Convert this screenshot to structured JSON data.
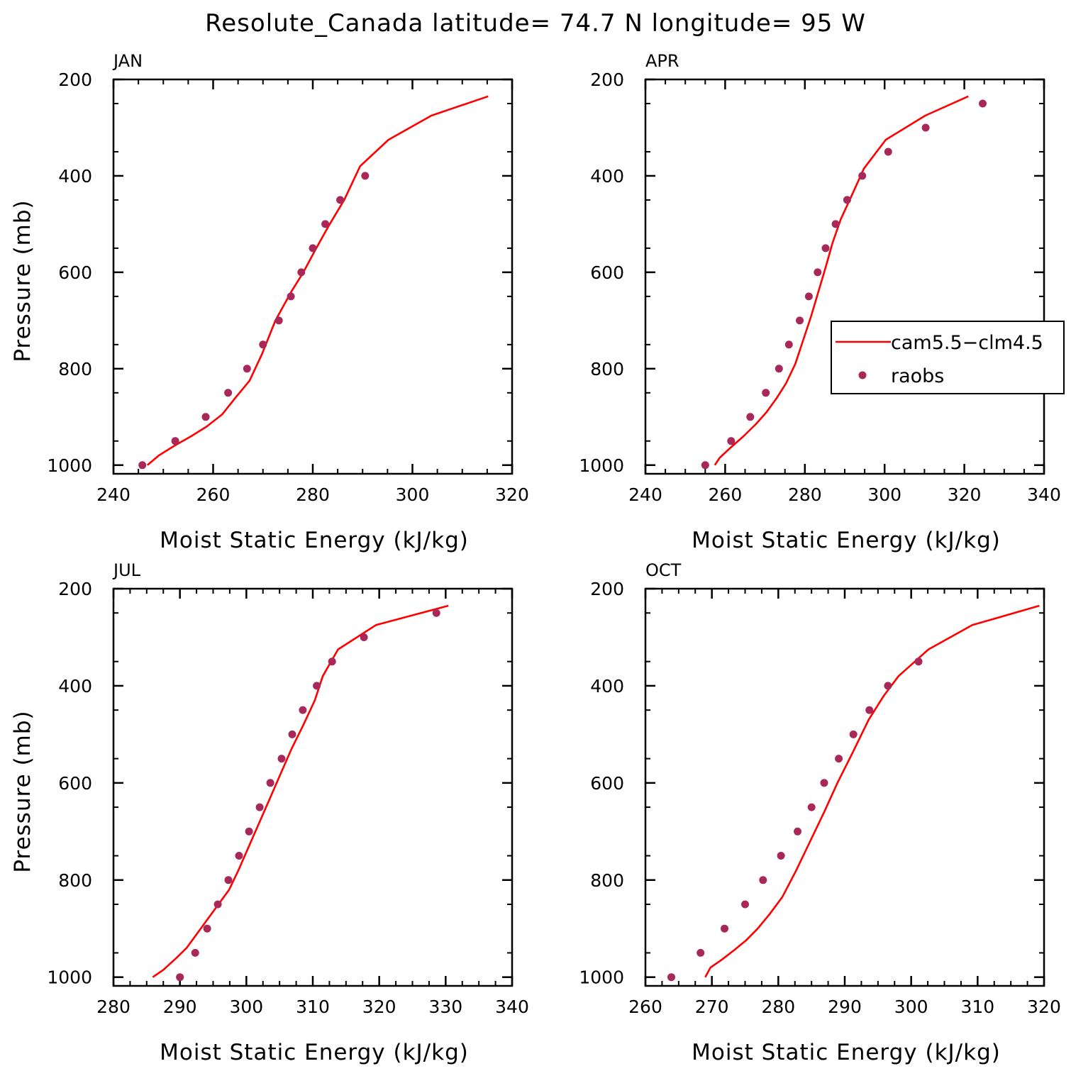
{
  "figure": {
    "title": "Resolute_Canada  latitude= 74.7 N longitude= 95 W",
    "colors": {
      "model": "#ff0000",
      "obs": "#a8285a",
      "axes": "#000000"
    },
    "legend": {
      "placement": "inside APR panel, center-right",
      "entries": [
        {
          "label": "cam5.5−clm4.5",
          "style": "line"
        },
        {
          "label": "raobs",
          "style": "marker"
        }
      ]
    }
  },
  "chart_data": [
    {
      "type": "line",
      "panel": "JAN",
      "xlabel": "Moist Static Energy (kJ/kg)",
      "ylabel": "Pressure (mb)",
      "xlim": [
        240,
        320
      ],
      "ylim": [
        1000,
        200
      ],
      "y_reversed": true,
      "xticks": [
        240,
        260,
        280,
        300,
        320
      ],
      "yticks": [
        200,
        400,
        600,
        800,
        1000
      ],
      "series": [
        {
          "name": "cam5.5−clm4.5",
          "style": "line",
          "points": [
            [
              246.8,
              1000
            ],
            [
              249.1,
              980
            ],
            [
              252.2,
              960
            ],
            [
              255.6,
              940
            ],
            [
              258.7,
              920
            ],
            [
              261.8,
              895
            ],
            [
              264.5,
              860
            ],
            [
              267.3,
              825
            ],
            [
              269.8,
              770
            ],
            [
              272.5,
              700
            ],
            [
              275.7,
              640
            ],
            [
              278.1,
              600
            ],
            [
              280.7,
              550
            ],
            [
              283.4,
              500
            ],
            [
              286.3,
              450
            ],
            [
              289.5,
              380
            ],
            [
              295.2,
              325
            ],
            [
              303.8,
              275
            ],
            [
              315.2,
              235
            ]
          ]
        },
        {
          "name": "raobs",
          "style": "marker",
          "points": [
            [
              245.8,
              1000
            ],
            [
              252.4,
              950
            ],
            [
              258.5,
              900
            ],
            [
              263.0,
              850
            ],
            [
              266.8,
              800
            ],
            [
              270.0,
              750
            ],
            [
              273.2,
              700
            ],
            [
              275.6,
              650
            ],
            [
              277.7,
              600
            ],
            [
              280.0,
              550
            ],
            [
              282.5,
              500
            ],
            [
              285.5,
              450
            ],
            [
              290.5,
              400
            ]
          ]
        }
      ]
    },
    {
      "type": "line",
      "panel": "APR",
      "xlabel": "Moist Static Energy (kJ/kg)",
      "ylabel": "",
      "xlim": [
        240,
        340
      ],
      "ylim": [
        1000,
        200
      ],
      "y_reversed": true,
      "xticks": [
        240,
        260,
        280,
        300,
        320,
        340
      ],
      "yticks": [
        200,
        400,
        600,
        800,
        1000
      ],
      "series": [
        {
          "name": "cam5.5−clm4.5",
          "style": "line",
          "points": [
            [
              257.4,
              1000
            ],
            [
              258.6,
              985
            ],
            [
              261.2,
              965
            ],
            [
              264.6,
              940
            ],
            [
              267.7,
              915
            ],
            [
              270.4,
              890
            ],
            [
              273.0,
              860
            ],
            [
              275.3,
              830
            ],
            [
              277.6,
              790
            ],
            [
              279.6,
              740
            ],
            [
              281.6,
              690
            ],
            [
              283.4,
              640
            ],
            [
              285.2,
              590
            ],
            [
              286.9,
              540
            ],
            [
              289.0,
              490
            ],
            [
              291.8,
              440
            ],
            [
              294.8,
              385
            ],
            [
              300.3,
              325
            ],
            [
              310.2,
              275
            ],
            [
              321.0,
              235
            ]
          ]
        },
        {
          "name": "raobs",
          "style": "marker",
          "points": [
            [
              255.0,
              1000
            ],
            [
              261.5,
              950
            ],
            [
              266.3,
              900
            ],
            [
              270.2,
              850
            ],
            [
              273.5,
              800
            ],
            [
              276.0,
              750
            ],
            [
              278.7,
              700
            ],
            [
              281.0,
              650
            ],
            [
              283.2,
              600
            ],
            [
              285.2,
              550
            ],
            [
              287.7,
              500
            ],
            [
              290.6,
              450
            ],
            [
              294.4,
              400
            ],
            [
              300.9,
              350
            ],
            [
              310.3,
              300
            ],
            [
              324.6,
              250
            ]
          ]
        }
      ]
    },
    {
      "type": "line",
      "panel": "JUL",
      "xlabel": "Moist Static Energy (kJ/kg)",
      "ylabel": "Pressure (mb)",
      "xlim": [
        280,
        340
      ],
      "ylim": [
        1000,
        200
      ],
      "y_reversed": true,
      "xticks": [
        280,
        290,
        300,
        310,
        320,
        330,
        340
      ],
      "yticks": [
        200,
        400,
        600,
        800,
        1000
      ],
      "series": [
        {
          "name": "cam5.5−clm4.5",
          "style": "line",
          "points": [
            [
              285.9,
              1000
            ],
            [
              287.5,
              985
            ],
            [
              289.5,
              960
            ],
            [
              291.0,
              940
            ],
            [
              292.6,
              910
            ],
            [
              294.2,
              880
            ],
            [
              295.8,
              850
            ],
            [
              297.4,
              820
            ],
            [
              298.8,
              780
            ],
            [
              300.4,
              730
            ],
            [
              302.0,
              680
            ],
            [
              303.6,
              630
            ],
            [
              305.2,
              580
            ],
            [
              306.8,
              530
            ],
            [
              308.6,
              480
            ],
            [
              310.3,
              430
            ],
            [
              311.5,
              380
            ],
            [
              313.8,
              325
            ],
            [
              319.5,
              275
            ],
            [
              330.4,
              235
            ]
          ]
        },
        {
          "name": "raobs",
          "style": "marker",
          "points": [
            [
              290.0,
              1000
            ],
            [
              292.3,
              950
            ],
            [
              294.1,
              900
            ],
            [
              295.7,
              850
            ],
            [
              297.3,
              800
            ],
            [
              298.9,
              750
            ],
            [
              300.4,
              700
            ],
            [
              302.0,
              650
            ],
            [
              303.6,
              600
            ],
            [
              305.3,
              550
            ],
            [
              306.9,
              500
            ],
            [
              308.5,
              450
            ],
            [
              310.6,
              400
            ],
            [
              312.9,
              350
            ],
            [
              317.7,
              300
            ],
            [
              328.6,
              250
            ]
          ]
        }
      ]
    },
    {
      "type": "line",
      "panel": "OCT",
      "xlabel": "Moist Static Energy (kJ/kg)",
      "ylabel": "",
      "xlim": [
        260,
        320
      ],
      "ylim": [
        1000,
        200
      ],
      "y_reversed": true,
      "xticks": [
        260,
        270,
        280,
        290,
        300,
        310,
        320
      ],
      "yticks": [
        200,
        400,
        600,
        800,
        1000
      ],
      "series": [
        {
          "name": "cam5.5−clm4.5",
          "style": "line",
          "points": [
            [
              269.0,
              1000
            ],
            [
              269.8,
              980
            ],
            [
              271.4,
              965
            ],
            [
              273.3,
              945
            ],
            [
              275.1,
              925
            ],
            [
              276.9,
              900
            ],
            [
              278.7,
              870
            ],
            [
              280.6,
              835
            ],
            [
              282.7,
              780
            ],
            [
              284.8,
              720
            ],
            [
              286.9,
              660
            ],
            [
              288.9,
              600
            ],
            [
              291.1,
              540
            ],
            [
              293.6,
              470
            ],
            [
              295.9,
              420
            ],
            [
              298.1,
              380
            ],
            [
              302.6,
              325
            ],
            [
              309.2,
              275
            ],
            [
              319.3,
              235
            ]
          ]
        },
        {
          "name": "raobs",
          "style": "marker",
          "points": [
            [
              263.9,
              1000
            ],
            [
              268.3,
              950
            ],
            [
              271.9,
              900
            ],
            [
              275.0,
              850
            ],
            [
              277.7,
              800
            ],
            [
              280.4,
              750
            ],
            [
              282.9,
              700
            ],
            [
              285.0,
              650
            ],
            [
              286.9,
              600
            ],
            [
              289.1,
              550
            ],
            [
              291.3,
              500
            ],
            [
              293.7,
              450
            ],
            [
              296.5,
              400
            ],
            [
              301.1,
              350
            ]
          ]
        }
      ]
    }
  ]
}
